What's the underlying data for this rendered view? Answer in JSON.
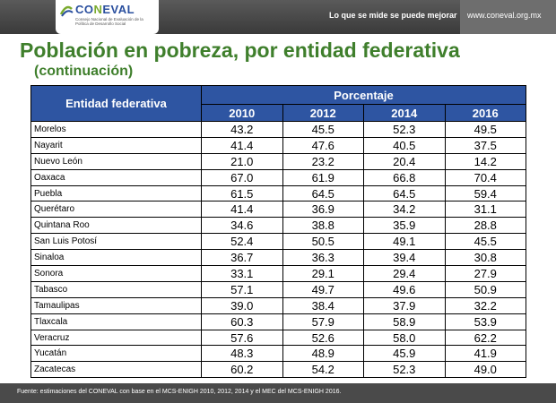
{
  "header": {
    "logo_prefix": "CO",
    "logo_accent": "N",
    "logo_suffix": "EVAL",
    "logo_sub": "Consejo Nacional de Evaluación de la Política de Desarrollo Social",
    "slogan": "Lo que se mide se puede mejorar",
    "website": "www.coneval.org.mx"
  },
  "title": "Población en pobreza, por entidad federativa",
  "subtitle": "(continuación)",
  "table": {
    "col_entity": "Entidad federativa",
    "col_group": "Porcentaje",
    "years": [
      "2010",
      "2012",
      "2014",
      "2016"
    ],
    "rows": [
      {
        "name": "Morelos",
        "values": [
          "43.2",
          "45.5",
          "52.3",
          "49.5"
        ]
      },
      {
        "name": "Nayarit",
        "values": [
          "41.4",
          "47.6",
          "40.5",
          "37.5"
        ]
      },
      {
        "name": "Nuevo León",
        "values": [
          "21.0",
          "23.2",
          "20.4",
          "14.2"
        ]
      },
      {
        "name": "Oaxaca",
        "values": [
          "67.0",
          "61.9",
          "66.8",
          "70.4"
        ]
      },
      {
        "name": "Puebla",
        "values": [
          "61.5",
          "64.5",
          "64.5",
          "59.4"
        ]
      },
      {
        "name": "Querétaro",
        "values": [
          "41.4",
          "36.9",
          "34.2",
          "31.1"
        ]
      },
      {
        "name": "Quintana Roo",
        "values": [
          "34.6",
          "38.8",
          "35.9",
          "28.8"
        ]
      },
      {
        "name": "San Luis Potosí",
        "values": [
          "52.4",
          "50.5",
          "49.1",
          "45.5"
        ]
      },
      {
        "name": "Sinaloa",
        "values": [
          "36.7",
          "36.3",
          "39.4",
          "30.8"
        ]
      },
      {
        "name": "Sonora",
        "values": [
          "33.1",
          "29.1",
          "29.4",
          "27.9"
        ]
      },
      {
        "name": "Tabasco",
        "values": [
          "57.1",
          "49.7",
          "49.6",
          "50.9"
        ]
      },
      {
        "name": "Tamaulipas",
        "values": [
          "39.0",
          "38.4",
          "37.9",
          "32.2"
        ]
      },
      {
        "name": "Tlaxcala",
        "values": [
          "60.3",
          "57.9",
          "58.9",
          "53.9"
        ]
      },
      {
        "name": "Veracruz",
        "values": [
          "57.6",
          "52.6",
          "58.0",
          "62.2"
        ]
      },
      {
        "name": "Yucatán",
        "values": [
          "48.3",
          "48.9",
          "45.9",
          "41.9"
        ]
      },
      {
        "name": "Zacatecas",
        "values": [
          "60.2",
          "54.2",
          "52.3",
          "49.0"
        ]
      }
    ]
  },
  "footnote": "Fuente: estimaciones del CONEVAL con base en el MCS-ENIGH 2010, 2012, 2014 y el MEC del MCS-ENIGH 2016.",
  "colors": {
    "header_blue": "#2e55a2",
    "title_green": "#3f7f2c",
    "bar_gray": "#4a4a4a"
  }
}
